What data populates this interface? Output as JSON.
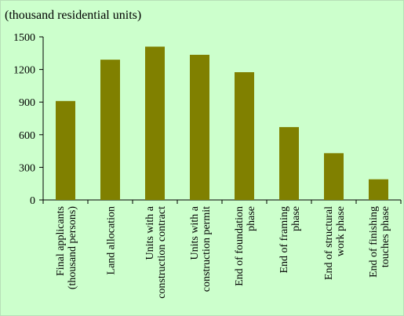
{
  "chart_data": {
    "type": "bar",
    "title": "(thousand residential units)",
    "categories": [
      "Final applicants\n(thousand persons)",
      "Land allocation",
      "Units with a\nconstruction contract",
      "Units with a\nconstruction permit",
      "End of foundation\nphase",
      "End of framing\nphase",
      "End of structural\nwork phase",
      "End of finishing\ntouches phase"
    ],
    "values": [
      910,
      1290,
      1410,
      1335,
      1175,
      670,
      430,
      190
    ],
    "color": "#808000",
    "ylim": [
      0,
      1500
    ],
    "yticks": [
      0,
      300,
      600,
      900,
      1200,
      1500
    ],
    "grid": false
  }
}
